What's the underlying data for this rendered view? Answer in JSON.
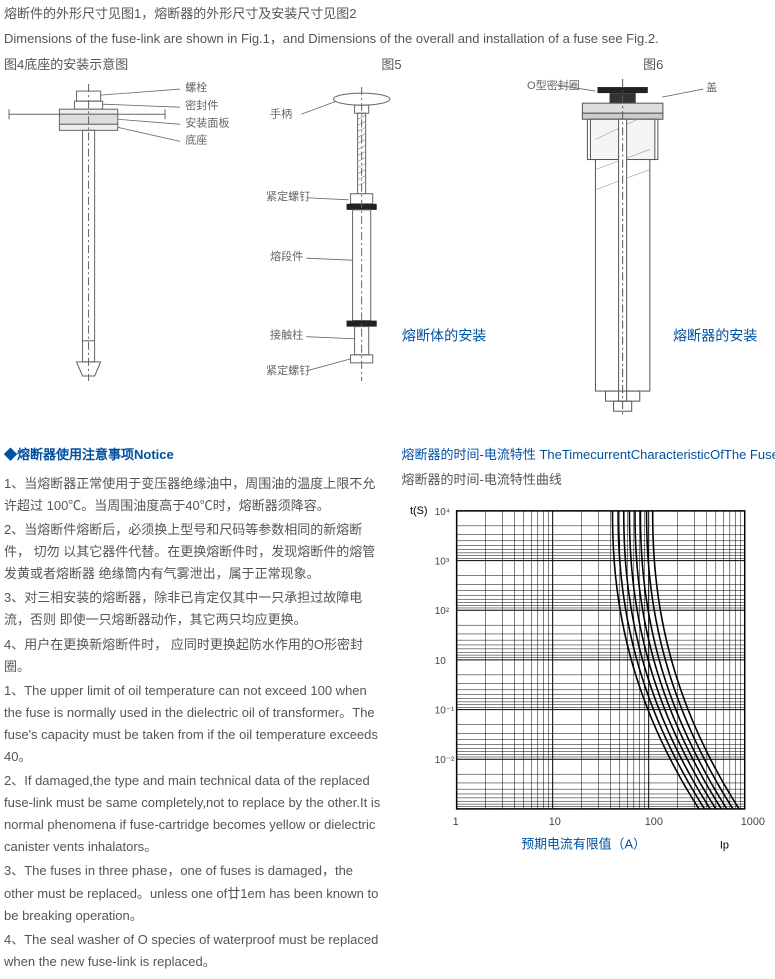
{
  "top": {
    "line1": "熔断件的外形尺寸见图1，熔断器的外形尺寸及安装尺寸见图2",
    "line2": "Dimensions of the fuse-link are shown in Fig.1，and Dimensions of the overall and installation of a fuse see Fig.2."
  },
  "figs": {
    "f4": {
      "title": "图4底座的安装示意图",
      "labels": {
        "l1": "螺栓",
        "l2": "密封件",
        "l3": "安装面板",
        "l4": "底座"
      }
    },
    "f5": {
      "title": "图5",
      "labels": {
        "l1": "手柄",
        "l2": "紧定螺钉",
        "l3": "熔段件",
        "l4": "接触柱",
        "l5": "紧定螺钉"
      },
      "caption": "熔断体的安装"
    },
    "f6": {
      "title": "图6",
      "labels": {
        "l1": "O型密封圈",
        "l2": "盖"
      },
      "caption": "熔断器的安装"
    }
  },
  "notice": {
    "heading": "◆熔断器使用注意事项Notice",
    "items": [
      "1、当熔断器正常使用于变压器绝缘油中，周围油的温度上限不允许超过 100℃。当周围油度高于40℃时，熔断器须降容。",
      "2、当熔断件熔断后，必须换上型号和尺码等参数相同的新熔断件，  切勿 以其它器件代替。在更换熔断件时，发现熔断件的熔管发黄或者熔断器 绝缘筒内有气雾泄出，属于正常现象。",
      "3、对三相安装的熔断器，除非已肯定仅其中一只承担过故障电流，否则 即使一只熔断器动作，其它两只均应更换。",
      "4、用户在更换新熔断件时， 应同时更换起防水作用的O形密封圈。",
      "1、The upper limit of oil temperature can not exceed 100 when the fuse is normally used in the dielectric oil of transformer。The fuse's capacity must be taken from if the oil temperature exceeds 40。",
      "2、If damaged,the type and main technical data of the replaced fuse-link must be same completely,not to replace by the other.It is normal phenomena if fuse-cartridge becomes yellow or dielectric canister vents inhalators。",
      "3、The fuses in three phase，one of fuses is damaged，the other  must be replaced。unless one of廿1em has been known to be breaking operation。",
      "4、The seal washer of O species of waterproof must be replaced when the new fuse-link is replaced。"
    ]
  },
  "chart": {
    "heading": "熔断器的时间-电流特性 TheTimecurrentCharacteristicOfThe Fuse",
    "sub": "熔断器的时间-电流特性曲线",
    "ylabel": "t(S)",
    "yexp": [
      "10⁴",
      "10³",
      "10²",
      "10",
      "10⁻¹",
      "10⁻²"
    ],
    "xticks": [
      "1",
      "10",
      "100",
      "1000"
    ],
    "xlabel": "预期电流有限值（A）",
    "xlabel2": "Ip",
    "curves_x0": [
      42,
      48,
      55,
      63,
      72,
      82,
      95,
      110
    ],
    "colors": {
      "grid": "#000",
      "curve": "#000",
      "box": "#000",
      "bg": "#fff"
    },
    "grid_fine": {
      "decades_x": 3,
      "decades_y": 6,
      "subdiv": [
        2,
        3,
        4,
        5,
        6,
        7,
        8,
        9
      ]
    }
  }
}
